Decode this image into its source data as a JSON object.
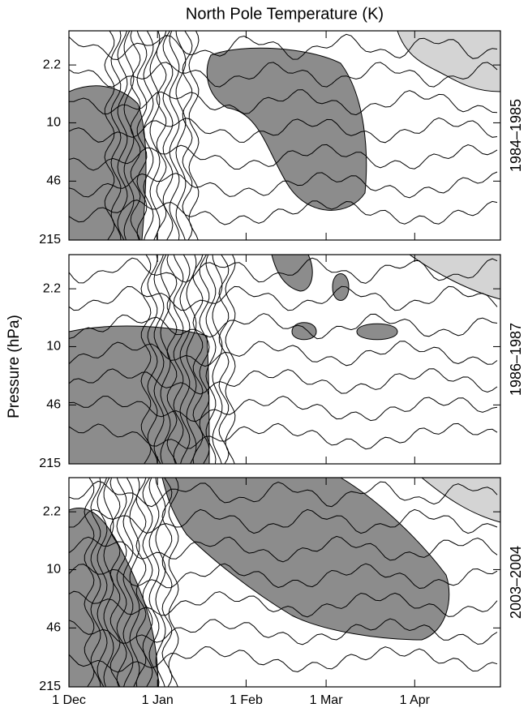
{
  "chart_data": {
    "type": "contour",
    "title": "North Pole Temperature (K)",
    "y_label": "Pressure (hPa)",
    "panels": [
      "1984–1985",
      "1986–1987",
      "2003–2004"
    ],
    "xlim": [
      0,
      151
    ],
    "xticks": [
      {
        "value": 0,
        "label": "1 Dec"
      },
      {
        "value": 31,
        "label": "1 Jan"
      },
      {
        "value": 62,
        "label": "1 Feb"
      },
      {
        "value": 90,
        "label": "1 Mar"
      },
      {
        "value": 121,
        "label": "1 Apr"
      }
    ],
    "ylim": [
      215,
      0.9
    ],
    "y_log": true,
    "yticks": [
      2.2,
      10,
      46,
      215
    ]
  }
}
